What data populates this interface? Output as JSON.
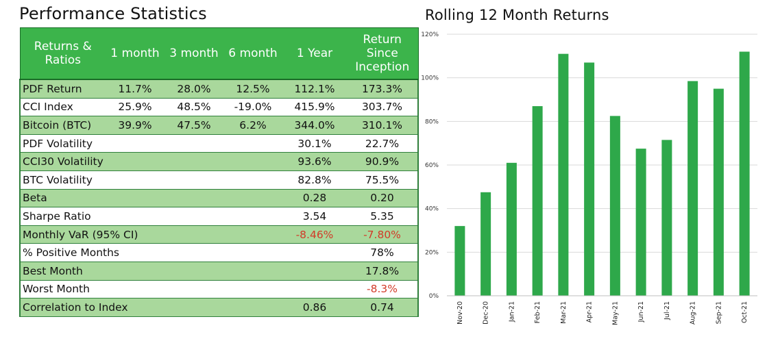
{
  "titles": {
    "left": "Performance Statistics",
    "right": "Rolling 12 Month Returns"
  },
  "table": {
    "headers": [
      "Returns & Ratios",
      "1 month",
      "3 month",
      "6 month",
      "1  Year",
      "Return Since Inception"
    ],
    "rows": [
      {
        "label": "PDF Return",
        "m1": "11.7%",
        "m3": "28.0%",
        "m6": "12.5%",
        "y1": "112.1%",
        "inc": "173.3%"
      },
      {
        "label": "CCI Index",
        "m1": "25.9%",
        "m3": "48.5%",
        "m6": "-19.0%",
        "y1": "415.9%",
        "inc": "303.7%"
      },
      {
        "label": "Bitcoin (BTC)",
        "m1": "39.9%",
        "m3": "47.5%",
        "m6": "6.2%",
        "y1": "344.0%",
        "inc": "310.1%"
      },
      {
        "label": "PDF Volatility",
        "m1": "",
        "m3": "",
        "m6": "",
        "y1": "30.1%",
        "inc": "22.7%"
      },
      {
        "label": "CCI30 Volatility",
        "m1": "",
        "m3": "",
        "m6": "",
        "y1": "93.6%",
        "inc": "90.9%"
      },
      {
        "label": "BTC Volatility",
        "m1": "",
        "m3": "",
        "m6": "",
        "y1": "82.8%",
        "inc": "75.5%"
      },
      {
        "label": "Beta",
        "m1": "",
        "m3": "",
        "m6": "",
        "y1": "0.28",
        "inc": "0.20"
      },
      {
        "label": "Sharpe Ratio",
        "m1": "",
        "m3": "",
        "m6": "",
        "y1": "3.54",
        "inc": "5.35"
      },
      {
        "label": "Monthly VaR (95% CI)",
        "m1": "",
        "m3": "",
        "m6": "",
        "y1": "-8.46%",
        "inc": "-7.80%"
      },
      {
        "label": "% Positive Months",
        "m1": "",
        "m3": "",
        "m6": "",
        "y1": "",
        "inc": "78%"
      },
      {
        "label": "Best Month",
        "m1": "",
        "m3": "",
        "m6": "",
        "y1": "",
        "inc": "17.8%"
      },
      {
        "label": "Worst Month",
        "m1": "",
        "m3": "",
        "m6": "",
        "y1": "",
        "inc": "-8.3%"
      },
      {
        "label": "Correlation to Index",
        "m1": "",
        "m3": "",
        "m6": "",
        "y1": "0.86",
        "inc": "0.74"
      }
    ]
  },
  "colors": {
    "header_green": "#3cb44b",
    "row_green": "#a9d89c",
    "bar_green": "#2ea84a",
    "negative_red": "#d23a28"
  },
  "chart_data": {
    "type": "bar",
    "title": "Rolling 12 Month Returns",
    "categories": [
      "Nov-20",
      "Dec-20",
      "Jan-21",
      "Feb-21",
      "Mar-21",
      "Apr-21",
      "May-21",
      "Jun-21",
      "Jul-21",
      "Aug-21",
      "Sep-21",
      "Oct-21"
    ],
    "values": [
      32,
      47.5,
      61,
      87,
      111,
      107,
      82.5,
      67.5,
      71.5,
      98.5,
      95,
      112
    ],
    "ylim": [
      0,
      120
    ],
    "yticks": [
      0,
      20,
      40,
      60,
      80,
      100,
      120
    ],
    "ytick_labels": [
      "0%",
      "20%",
      "40%",
      "60%",
      "80%",
      "100%",
      "120%"
    ],
    "grid": true,
    "xlabel": "",
    "ylabel": ""
  }
}
